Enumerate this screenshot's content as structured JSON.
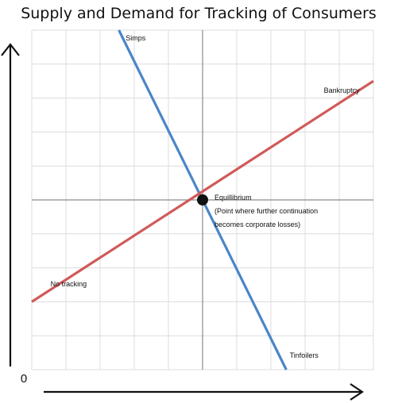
{
  "chart_data": {
    "type": "line",
    "title": "Supply and Demand for Tracking of Consumers",
    "xlabel": "",
    "ylabel": "",
    "origin_label": "0",
    "xlim": [
      0,
      10
    ],
    "ylim": [
      0,
      10
    ],
    "grid": true,
    "series": [
      {
        "name": "",
        "color": "#4a86c8",
        "points": [
          [
            2.55,
            10
          ],
          [
            7.45,
            0
          ]
        ]
      },
      {
        "name": "",
        "color": "#d05a5a",
        "points": [
          [
            0,
            2
          ],
          [
            10,
            8.5
          ]
        ]
      }
    ],
    "annotations": [
      {
        "text": "Simps",
        "x": 2.75,
        "y": 9.7
      },
      {
        "text": "Bankruptcy",
        "x": 8.55,
        "y": 8.15
      },
      {
        "text": "Equillibrium",
        "x": 5.35,
        "y": 5.0
      },
      {
        "text": "(Point where further continuation",
        "x": 5.35,
        "y": 4.6
      },
      {
        "text": "becomes corporate losses)",
        "x": 5.35,
        "y": 4.2
      },
      {
        "text": "No tracking",
        "x": 0.55,
        "y": 2.45
      },
      {
        "text": "Tinfoilers",
        "x": 7.55,
        "y": 0.35
      }
    ],
    "equilibrium_point": {
      "x": 5.0,
      "y": 5.0
    },
    "colors": {
      "grid": "#dcdcdc",
      "center_line": "#8a8a8a",
      "axis": "#111111",
      "point": "#111111"
    }
  }
}
